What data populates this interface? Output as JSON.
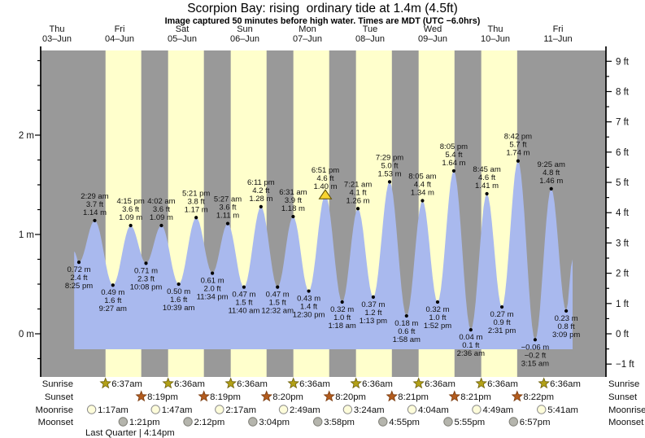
{
  "title": "Scorpion Bay: rising  ordinary tide at 1.4m (4.5ft)",
  "subtitle": "Image captured 50 minutes before high water. Times are MDT (UTC −6.0hrs)",
  "days": [
    {
      "weekday": "Thu",
      "date": "03–Jun"
    },
    {
      "weekday": "Fri",
      "date": "04–Jun"
    },
    {
      "weekday": "Sat",
      "date": "05–Jun"
    },
    {
      "weekday": "Sun",
      "date": "06–Jun"
    },
    {
      "weekday": "Mon",
      "date": "07–Jun"
    },
    {
      "weekday": "Tue",
      "date": "08–Jun"
    },
    {
      "weekday": "Wed",
      "date": "09–Jun"
    },
    {
      "weekday": "Thu",
      "date": "10–Jun"
    },
    {
      "weekday": "Fri",
      "date": "11–Jun"
    }
  ],
  "axes": {
    "left_ticks": [
      {
        "v": 2,
        "label": "2 m"
      },
      {
        "v": 1,
        "label": "1 m"
      },
      {
        "v": 0,
        "label": "0 m"
      }
    ],
    "right_ticks": [
      {
        "v": 9,
        "label": "9 ft"
      },
      {
        "v": 8,
        "label": "8 ft"
      },
      {
        "v": 7,
        "label": "7 ft"
      },
      {
        "v": 6,
        "label": "6 ft"
      },
      {
        "v": 5,
        "label": "5 ft"
      },
      {
        "v": 4,
        "label": "4 ft"
      },
      {
        "v": 3,
        "label": "3 ft"
      },
      {
        "v": 2,
        "label": "2 ft"
      },
      {
        "v": 1,
        "label": "1 ft"
      },
      {
        "v": 0,
        "label": "0 ft"
      },
      {
        "v": -1,
        "label": "−1 ft"
      }
    ]
  },
  "chart_data": {
    "type": "area",
    "title": "Scorpion Bay tide height, 03–11 Jun",
    "y_left_unit": "m",
    "y_right_unit": "ft",
    "x_range_days": 9,
    "events": [
      {
        "type": "edge",
        "day": 0,
        "hour": 18.6,
        "m": 0.83
      },
      {
        "type": "low",
        "day": 0,
        "hour": 20.417,
        "m": 0.72,
        "labels": [
          "0.72 m",
          "2.4 ft",
          "8:25 pm"
        ]
      },
      {
        "type": "high",
        "day": 1,
        "hour": 2.483,
        "m": 1.14,
        "labels": [
          "2:29 am",
          "3.7 ft",
          "1.14 m"
        ]
      },
      {
        "type": "low",
        "day": 1,
        "hour": 9.45,
        "m": 0.49,
        "labels": [
          "0.49 m",
          "1.6 ft",
          "9:27 am"
        ]
      },
      {
        "type": "high",
        "day": 1,
        "hour": 16.25,
        "m": 1.09,
        "labels": [
          "4:15 pm",
          "3.6 ft",
          "1.09 m"
        ]
      },
      {
        "type": "low",
        "day": 1,
        "hour": 22.133,
        "m": 0.71,
        "labels": [
          "0.71 m",
          "2.3 ft",
          "10:08 pm"
        ]
      },
      {
        "type": "high",
        "day": 2,
        "hour": 4.033,
        "m": 1.09,
        "labels": [
          "4:02 am",
          "3.6 ft",
          "1.09 m"
        ]
      },
      {
        "type": "low",
        "day": 2,
        "hour": 10.65,
        "m": 0.5,
        "labels": [
          "0.50 m",
          "1.6 ft",
          "10:39 am"
        ]
      },
      {
        "type": "high",
        "day": 2,
        "hour": 17.35,
        "m": 1.17,
        "labels": [
          "5:21 pm",
          "3.8 ft",
          "1.17 m"
        ]
      },
      {
        "type": "low",
        "day": 2,
        "hour": 23.567,
        "m": 0.61,
        "labels": [
          "0.61 m",
          "2.0 ft",
          "11:34 pm"
        ]
      },
      {
        "type": "high",
        "day": 3,
        "hour": 5.45,
        "m": 1.11,
        "labels": [
          "5:27 am",
          "3.6 ft",
          "1.11 m"
        ]
      },
      {
        "type": "low",
        "day": 3,
        "hour": 11.667,
        "m": 0.47,
        "labels": [
          "0.47 m",
          "1.5 ft",
          "11:40 am"
        ]
      },
      {
        "type": "high",
        "day": 3,
        "hour": 18.183,
        "m": 1.28,
        "labels": [
          "6:11 pm",
          "4.2 ft",
          "1.28 m"
        ]
      },
      {
        "type": "low",
        "day": 4,
        "hour": 0.533,
        "m": 0.47,
        "labels": [
          "0.47 m",
          "1.5 ft",
          "12:32 am"
        ]
      },
      {
        "type": "high",
        "day": 4,
        "hour": 6.517,
        "m": 1.18,
        "labels": [
          "6:31 am",
          "3.9 ft",
          "1.18 m"
        ]
      },
      {
        "type": "low",
        "day": 4,
        "hour": 12.5,
        "m": 0.43,
        "labels": [
          "0.43 m",
          "1.4 ft",
          "12:30 pm"
        ]
      },
      {
        "type": "high",
        "day": 4,
        "hour": 18.85,
        "m": 1.4,
        "labels": [
          "6:51 pm",
          "4.6 ft",
          "1.40 m"
        ],
        "now_marker": true
      },
      {
        "type": "low",
        "day": 5,
        "hour": 1.3,
        "m": 0.32,
        "labels": [
          "0.32 m",
          "1.0 ft",
          "1:18 am"
        ]
      },
      {
        "type": "high",
        "day": 5,
        "hour": 7.35,
        "m": 1.26,
        "labels": [
          "7:21 am",
          "4.1 ft",
          "1.26 m"
        ]
      },
      {
        "type": "low",
        "day": 5,
        "hour": 13.217,
        "m": 0.37,
        "labels": [
          "0.37 m",
          "1.2 ft",
          "1:13 pm"
        ]
      },
      {
        "type": "high",
        "day": 5,
        "hour": 19.483,
        "m": 1.53,
        "labels": [
          "7:29 pm",
          "5.0 ft",
          "1.53 m"
        ]
      },
      {
        "type": "low",
        "day": 6,
        "hour": 1.967,
        "m": 0.18,
        "labels": [
          "0.18 m",
          "0.6 ft",
          "1:58 am"
        ]
      },
      {
        "type": "high",
        "day": 6,
        "hour": 8.083,
        "m": 1.34,
        "labels": [
          "8:05 am",
          "4.4 ft",
          "1.34 m"
        ]
      },
      {
        "type": "low",
        "day": 6,
        "hour": 13.867,
        "m": 0.32,
        "labels": [
          "0.32 m",
          "1.0 ft",
          "1:52 pm"
        ]
      },
      {
        "type": "high",
        "day": 6,
        "hour": 20.083,
        "m": 1.64,
        "labels": [
          "8:05 pm",
          "5.4 ft",
          "1.64 m"
        ]
      },
      {
        "type": "low",
        "day": 7,
        "hour": 2.6,
        "m": 0.04,
        "labels": [
          "0.04 m",
          "0.1 ft",
          "2:36 am"
        ]
      },
      {
        "type": "high",
        "day": 7,
        "hour": 8.75,
        "m": 1.41,
        "labels": [
          "8:45 am",
          "4.6 ft",
          "1.41 m"
        ]
      },
      {
        "type": "low",
        "day": 7,
        "hour": 14.517,
        "m": 0.27,
        "labels": [
          "0.27 m",
          "0.9 ft",
          "2:31 pm"
        ]
      },
      {
        "type": "high",
        "day": 7,
        "hour": 20.7,
        "m": 1.74,
        "labels": [
          "8:42 pm",
          "5.7 ft",
          "1.74 m"
        ]
      },
      {
        "type": "low",
        "day": 8,
        "hour": 3.25,
        "m": -0.06,
        "labels": [
          "−0.06 m",
          "−0.2 ft",
          "3:15 am"
        ]
      },
      {
        "type": "high",
        "day": 8,
        "hour": 9.417,
        "m": 1.46,
        "labels": [
          "9:25 am",
          "4.8 ft",
          "1.46 m"
        ]
      },
      {
        "type": "low",
        "day": 8,
        "hour": 15.15,
        "m": 0.23,
        "labels": [
          "0.23 m",
          "0.8 ft",
          "3:09 pm"
        ]
      },
      {
        "type": "edge",
        "day": 8,
        "hour": 17.6,
        "m": 0.75
      }
    ]
  },
  "astro": {
    "row_labels": [
      "Sunrise",
      "Sunset",
      "Moonrise",
      "Moonset"
    ],
    "sunrise": [
      {
        "day": 1,
        "hour": 6.617,
        "time": "6:37am"
      },
      {
        "day": 2,
        "hour": 6.6,
        "time": "6:36am"
      },
      {
        "day": 3,
        "hour": 6.6,
        "time": "6:36am"
      },
      {
        "day": 4,
        "hour": 6.6,
        "time": "6:36am"
      },
      {
        "day": 5,
        "hour": 6.6,
        "time": "6:36am"
      },
      {
        "day": 6,
        "hour": 6.6,
        "time": "6:36am"
      },
      {
        "day": 7,
        "hour": 6.6,
        "time": "6:36am"
      },
      {
        "day": 8,
        "hour": 6.6,
        "time": "6:36am"
      }
    ],
    "sunset": [
      {
        "day": 1,
        "hour": 20.317,
        "time": "8:19pm"
      },
      {
        "day": 2,
        "hour": 20.317,
        "time": "8:19pm"
      },
      {
        "day": 3,
        "hour": 20.333,
        "time": "8:20pm"
      },
      {
        "day": 4,
        "hour": 20.333,
        "time": "8:20pm"
      },
      {
        "day": 5,
        "hour": 20.35,
        "time": "8:21pm"
      },
      {
        "day": 6,
        "hour": 20.35,
        "time": "8:21pm"
      },
      {
        "day": 7,
        "hour": 20.367,
        "time": "8:22pm"
      }
    ],
    "moonrise": [
      {
        "day": 1,
        "hour": 1.283,
        "time": "1:17am"
      },
      {
        "day": 2,
        "hour": 1.783,
        "time": "1:47am"
      },
      {
        "day": 3,
        "hour": 2.283,
        "time": "2:17am"
      },
      {
        "day": 4,
        "hour": 2.817,
        "time": "2:49am"
      },
      {
        "day": 5,
        "hour": 3.4,
        "time": "3:24am"
      },
      {
        "day": 6,
        "hour": 4.067,
        "time": "4:04am"
      },
      {
        "day": 7,
        "hour": 4.817,
        "time": "4:49am"
      },
      {
        "day": 8,
        "hour": 5.683,
        "time": "5:41am"
      }
    ],
    "moonset": [
      {
        "day": 1,
        "hour": 13.35,
        "time": "1:21pm"
      },
      {
        "day": 2,
        "hour": 14.2,
        "time": "2:12pm"
      },
      {
        "day": 3,
        "hour": 15.067,
        "time": "3:04pm"
      },
      {
        "day": 4,
        "hour": 15.967,
        "time": "3:58pm"
      },
      {
        "day": 5,
        "hour": 16.917,
        "time": "4:55pm"
      },
      {
        "day": 6,
        "hour": 17.917,
        "time": "5:55pm"
      },
      {
        "day": 7,
        "hour": 18.95,
        "time": "6:57pm"
      }
    ]
  },
  "moon_phase_note": "Last Quarter | 4:14pm",
  "colors": {
    "night_band": "#999999",
    "day_band": "#ffffcc",
    "tide_fill": "#a9b9ee",
    "day_label": "#e94141",
    "now_marker": "#f8d530",
    "now_marker_edge": "#5a4a00",
    "sunrise_star": "#b3a117",
    "sunrise_star_edge": "#6b5e0a",
    "sunset_star": "#b35c1e",
    "sunset_star_edge": "#7a3c10",
    "moonrise_disc": "#fdfcda",
    "moonrise_disc_edge": "#8a8a8a",
    "moonset_disc": "#b5b5ad",
    "moonset_disc_edge": "#7d7d75"
  }
}
